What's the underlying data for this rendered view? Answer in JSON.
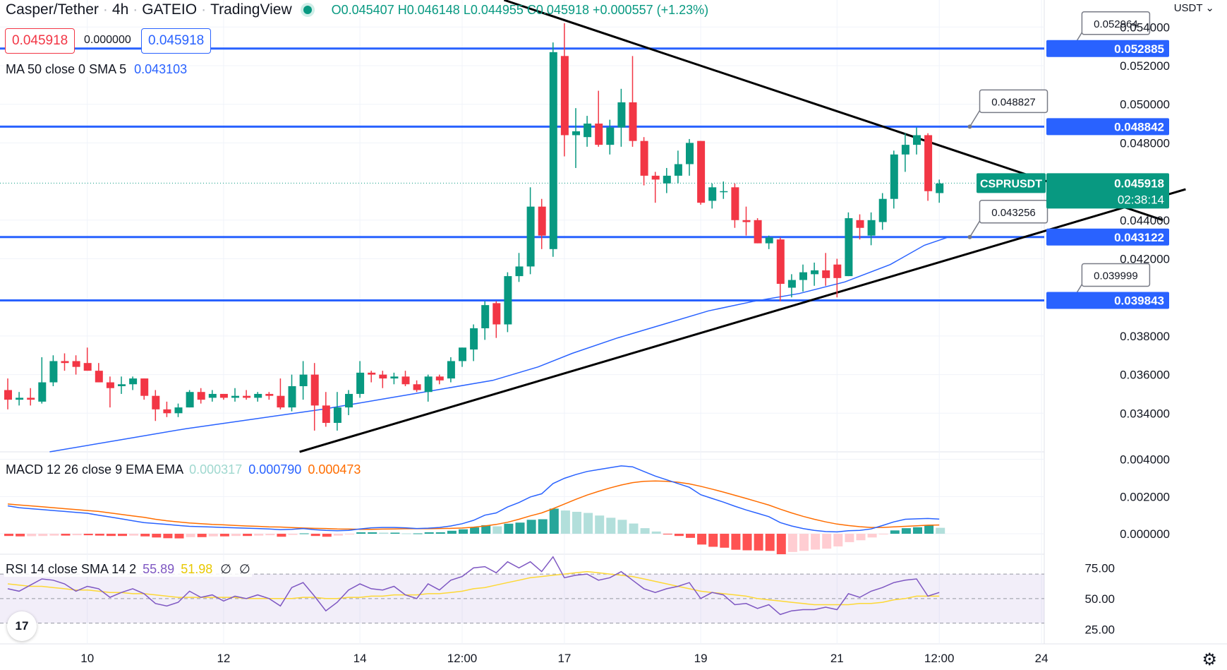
{
  "header": {
    "symbol": "Casper/Tether",
    "interval": "4h",
    "exchange": "GATEIO",
    "platform": "TradingView",
    "open": "O0.045407",
    "high": "H0.046148",
    "low": "L0.044955",
    "close": "C0.045918",
    "change": "+0.000557 (+1.23%)",
    "sell_price": "0.045918",
    "spread": "0.000000",
    "buy_price": "0.045918",
    "currency": "USDT",
    "currency_caret": "⌄"
  },
  "colors": {
    "up": "#089981",
    "down": "#f23645",
    "level": "#2962ff",
    "ma": "#2962ff",
    "macd_signal": "#ff6d00",
    "rsi": "#7e57c2",
    "rsi_ma": "#fdd835"
  },
  "icons": {
    "logo": "tradingview-logo-icon",
    "settings": "gear-icon",
    "live": "live-dot-icon"
  },
  "indicators": {
    "ma": {
      "label": "MA 50 close 0 SMA 5",
      "value": "0.043103"
    },
    "macd": {
      "label": "MACD 12 26 close 9 EMA EMA",
      "hist": "0.000317",
      "macd": "0.000790",
      "signal": "0.000473"
    },
    "rsi": {
      "label": "RSI 14 close SMA 14 2",
      "rsi": "55.89",
      "ma": "51.98",
      "extra1": "∅",
      "extra2": "∅"
    }
  },
  "logo_text": "17",
  "settings_glyph": "⚙",
  "chart_data": {
    "type": "candlestick",
    "x_ticks": [
      {
        "label": "10",
        "i": 7
      },
      {
        "label": "12",
        "i": 19
      },
      {
        "label": "14",
        "i": 31
      },
      {
        "label": "12:00",
        "i": 40
      },
      {
        "label": "17",
        "i": 49
      },
      {
        "label": "19",
        "i": 61
      },
      {
        "label": "21",
        "i": 73
      },
      {
        "label": "12:00",
        "i": 82
      },
      {
        "label": "24",
        "i": 91
      }
    ],
    "price_axis": {
      "min": 0.032,
      "max": 0.0554,
      "ticks": [
        "0.054000",
        "0.052000",
        "0.050000",
        "0.048000",
        "0.044000",
        "0.042000",
        "0.038000",
        "0.036000",
        "0.034000"
      ]
    },
    "candles": [
      {
        "o": 0.0352,
        "h": 0.0358,
        "l": 0.0342,
        "c": 0.0347
      },
      {
        "o": 0.0347,
        "h": 0.0351,
        "l": 0.0344,
        "c": 0.0348
      },
      {
        "o": 0.0348,
        "h": 0.0353,
        "l": 0.0344,
        "c": 0.0347
      },
      {
        "o": 0.0346,
        "h": 0.0369,
        "l": 0.0345,
        "c": 0.0356
      },
      {
        "o": 0.0356,
        "h": 0.037,
        "l": 0.0354,
        "c": 0.0367
      },
      {
        "o": 0.0367,
        "h": 0.0371,
        "l": 0.0362,
        "c": 0.0366
      },
      {
        "o": 0.0367,
        "h": 0.037,
        "l": 0.036,
        "c": 0.0364
      },
      {
        "o": 0.0366,
        "h": 0.0374,
        "l": 0.0362,
        "c": 0.0362
      },
      {
        "o": 0.0362,
        "h": 0.0366,
        "l": 0.0356,
        "c": 0.0356
      },
      {
        "o": 0.0356,
        "h": 0.0359,
        "l": 0.0343,
        "c": 0.0353
      },
      {
        "o": 0.0354,
        "h": 0.0359,
        "l": 0.035,
        "c": 0.0355
      },
      {
        "o": 0.0355,
        "h": 0.0359,
        "l": 0.0352,
        "c": 0.0358
      },
      {
        "o": 0.0358,
        "h": 0.0358,
        "l": 0.0347,
        "c": 0.0349
      },
      {
        "o": 0.0349,
        "h": 0.0352,
        "l": 0.0336,
        "c": 0.0342
      },
      {
        "o": 0.0342,
        "h": 0.0346,
        "l": 0.0338,
        "c": 0.034
      },
      {
        "o": 0.034,
        "h": 0.0345,
        "l": 0.0338,
        "c": 0.0343
      },
      {
        "o": 0.0343,
        "h": 0.0352,
        "l": 0.0343,
        "c": 0.0351
      },
      {
        "o": 0.0351,
        "h": 0.0353,
        "l": 0.0345,
        "c": 0.0347
      },
      {
        "o": 0.0348,
        "h": 0.0352,
        "l": 0.0346,
        "c": 0.035
      },
      {
        "o": 0.035,
        "h": 0.035,
        "l": 0.0347,
        "c": 0.0348
      },
      {
        "o": 0.0348,
        "h": 0.0353,
        "l": 0.0346,
        "c": 0.0349
      },
      {
        "o": 0.0349,
        "h": 0.0352,
        "l": 0.0347,
        "c": 0.0348
      },
      {
        "o": 0.0348,
        "h": 0.0351,
        "l": 0.0346,
        "c": 0.035
      },
      {
        "o": 0.035,
        "h": 0.0351,
        "l": 0.0347,
        "c": 0.0349
      },
      {
        "o": 0.0349,
        "h": 0.0358,
        "l": 0.0342,
        "c": 0.0343
      },
      {
        "o": 0.0343,
        "h": 0.036,
        "l": 0.0341,
        "c": 0.0354
      },
      {
        "o": 0.0354,
        "h": 0.0367,
        "l": 0.0347,
        "c": 0.036
      },
      {
        "o": 0.036,
        "h": 0.0366,
        "l": 0.0331,
        "c": 0.0344
      },
      {
        "o": 0.0344,
        "h": 0.0351,
        "l": 0.0333,
        "c": 0.0335
      },
      {
        "o": 0.0335,
        "h": 0.0351,
        "l": 0.0331,
        "c": 0.0343
      },
      {
        "o": 0.0343,
        "h": 0.0352,
        "l": 0.0339,
        "c": 0.035
      },
      {
        "o": 0.035,
        "h": 0.0367,
        "l": 0.0348,
        "c": 0.0361
      },
      {
        "o": 0.0361,
        "h": 0.0362,
        "l": 0.0356,
        "c": 0.036
      },
      {
        "o": 0.036,
        "h": 0.0362,
        "l": 0.0353,
        "c": 0.0358
      },
      {
        "o": 0.0358,
        "h": 0.0361,
        "l": 0.0355,
        "c": 0.0359
      },
      {
        "o": 0.0359,
        "h": 0.0362,
        "l": 0.0354,
        "c": 0.0355
      },
      {
        "o": 0.0355,
        "h": 0.0357,
        "l": 0.0351,
        "c": 0.0352
      },
      {
        "o": 0.0351,
        "h": 0.036,
        "l": 0.0346,
        "c": 0.0359
      },
      {
        "o": 0.0359,
        "h": 0.036,
        "l": 0.0355,
        "c": 0.0357
      },
      {
        "o": 0.0358,
        "h": 0.0369,
        "l": 0.0356,
        "c": 0.0367
      },
      {
        "o": 0.0367,
        "h": 0.0374,
        "l": 0.0364,
        "c": 0.0374
      },
      {
        "o": 0.0373,
        "h": 0.0386,
        "l": 0.0367,
        "c": 0.0384
      },
      {
        "o": 0.0384,
        "h": 0.0398,
        "l": 0.0378,
        "c": 0.0396
      },
      {
        "o": 0.0397,
        "h": 0.0398,
        "l": 0.0379,
        "c": 0.0386
      },
      {
        "o": 0.0386,
        "h": 0.0413,
        "l": 0.0382,
        "c": 0.0411
      },
      {
        "o": 0.0411,
        "h": 0.0423,
        "l": 0.0408,
        "c": 0.0416
      },
      {
        "o": 0.0416,
        "h": 0.0457,
        "l": 0.0412,
        "c": 0.0447
      },
      {
        "o": 0.0447,
        "h": 0.0451,
        "l": 0.0425,
        "c": 0.0432
      },
      {
        "o": 0.0425,
        "h": 0.0532,
        "l": 0.0421,
        "c": 0.0527
      },
      {
        "o": 0.0525,
        "h": 0.0542,
        "l": 0.0473,
        "c": 0.0484
      },
      {
        "o": 0.0484,
        "h": 0.0498,
        "l": 0.0467,
        "c": 0.0486
      },
      {
        "o": 0.0483,
        "h": 0.0494,
        "l": 0.0478,
        "c": 0.049
      },
      {
        "o": 0.049,
        "h": 0.0507,
        "l": 0.0478,
        "c": 0.0479
      },
      {
        "o": 0.0479,
        "h": 0.0492,
        "l": 0.0474,
        "c": 0.0488
      },
      {
        "o": 0.0488,
        "h": 0.0508,
        "l": 0.0478,
        "c": 0.0501
      },
      {
        "o": 0.0501,
        "h": 0.0525,
        "l": 0.0478,
        "c": 0.0481
      },
      {
        "o": 0.0481,
        "h": 0.0483,
        "l": 0.0458,
        "c": 0.0463
      },
      {
        "o": 0.0463,
        "h": 0.0465,
        "l": 0.0449,
        "c": 0.0461
      },
      {
        "o": 0.0459,
        "h": 0.0467,
        "l": 0.0454,
        "c": 0.0463
      },
      {
        "o": 0.0463,
        "h": 0.0476,
        "l": 0.0459,
        "c": 0.0469
      },
      {
        "o": 0.0469,
        "h": 0.0482,
        "l": 0.0463,
        "c": 0.048
      },
      {
        "o": 0.0481,
        "h": 0.0481,
        "l": 0.0448,
        "c": 0.0449
      },
      {
        "o": 0.045,
        "h": 0.0459,
        "l": 0.0446,
        "c": 0.0457
      },
      {
        "o": 0.0455,
        "h": 0.046,
        "l": 0.0451,
        "c": 0.0455
      },
      {
        "o": 0.0457,
        "h": 0.0459,
        "l": 0.0436,
        "c": 0.044
      },
      {
        "o": 0.044,
        "h": 0.0447,
        "l": 0.0432,
        "c": 0.0439
      },
      {
        "o": 0.044,
        "h": 0.0441,
        "l": 0.0428,
        "c": 0.0428
      },
      {
        "o": 0.0428,
        "h": 0.0432,
        "l": 0.0425,
        "c": 0.0431
      },
      {
        "o": 0.043,
        "h": 0.0431,
        "l": 0.0398,
        "c": 0.0407
      },
      {
        "o": 0.0405,
        "h": 0.0412,
        "l": 0.04,
        "c": 0.0409
      },
      {
        "o": 0.0409,
        "h": 0.0417,
        "l": 0.0403,
        "c": 0.0413
      },
      {
        "o": 0.0412,
        "h": 0.0418,
        "l": 0.0406,
        "c": 0.0414
      },
      {
        "o": 0.0414,
        "h": 0.0423,
        "l": 0.0406,
        "c": 0.041
      },
      {
        "o": 0.0417,
        "h": 0.042,
        "l": 0.04,
        "c": 0.041
      },
      {
        "o": 0.0411,
        "h": 0.0444,
        "l": 0.0411,
        "c": 0.0441
      },
      {
        "o": 0.044,
        "h": 0.0443,
        "l": 0.043,
        "c": 0.0436
      },
      {
        "o": 0.0432,
        "h": 0.0444,
        "l": 0.0427,
        "c": 0.044
      },
      {
        "o": 0.0439,
        "h": 0.0454,
        "l": 0.0435,
        "c": 0.0451
      },
      {
        "o": 0.0451,
        "h": 0.0476,
        "l": 0.0446,
        "c": 0.0474
      },
      {
        "o": 0.0474,
        "h": 0.0485,
        "l": 0.0465,
        "c": 0.0479
      },
      {
        "o": 0.0479,
        "h": 0.0488,
        "l": 0.0474,
        "c": 0.0484
      },
      {
        "o": 0.0484,
        "h": 0.0485,
        "l": 0.045,
        "c": 0.0455
      },
      {
        "o": 0.0454,
        "h": 0.0461,
        "l": 0.0449,
        "c": 0.0459
      }
    ],
    "ma50": [
      [
        4,
        0.032
      ],
      [
        10,
        0.0326
      ],
      [
        16,
        0.0332
      ],
      [
        22,
        0.0337
      ],
      [
        28,
        0.0342
      ],
      [
        34,
        0.0348
      ],
      [
        38,
        0.0352
      ],
      [
        43,
        0.0357
      ],
      [
        47,
        0.0364
      ],
      [
        50,
        0.0371
      ],
      [
        54,
        0.0379
      ],
      [
        58,
        0.0386
      ],
      [
        62,
        0.0393
      ],
      [
        66,
        0.0398
      ],
      [
        70,
        0.0402
      ],
      [
        74,
        0.0408
      ],
      [
        78,
        0.0417
      ],
      [
        81,
        0.0427
      ],
      [
        83,
        0.0431
      ]
    ],
    "levels": [
      {
        "value": 0.052885,
        "label": "0.052885",
        "callout": "0.052964",
        "callout_at": 94
      },
      {
        "value": 0.048842,
        "label": "0.048842",
        "callout": "0.048827",
        "callout_at": 85
      },
      {
        "value": 0.043122,
        "label": "0.043122",
        "callout": "0.043256",
        "callout_at": 85
      },
      {
        "value": 0.039843,
        "label": "0.039843",
        "callout": "0.039999",
        "callout_at": 94
      }
    ],
    "trendlines": [
      {
        "from": [
          44,
          0.0554
        ],
        "to": [
          102,
          0.044
        ]
      },
      {
        "from": [
          26,
          0.032
        ],
        "to": [
          104,
          0.0456
        ]
      }
    ],
    "current_price": {
      "value": 0.045918,
      "label": "0.045918",
      "symbol_tag": "CSPRUSDT",
      "countdown": "02:38:14"
    },
    "macd": {
      "axis": {
        "min": -0.0011,
        "max": 0.0041,
        "ticks": [
          "0.004000",
          "0.002000",
          "0.000000"
        ]
      },
      "hist": [
        -0.00012,
        -0.00014,
        -0.00013,
        -0.00012,
        -0.0001,
        -0.0001,
        -8e-05,
        -8e-05,
        -0.0001,
        -0.00012,
        -0.00012,
        -0.0001,
        -0.00014,
        -0.0002,
        -0.00024,
        -0.00025,
        -0.00018,
        -0.00018,
        -0.00014,
        -0.00014,
        -0.00012,
        -0.00012,
        -0.0001,
        -8e-05,
        -0.00016,
        -6e-05,
        2e-05,
        -0.00012,
        -0.00016,
        -0.0001,
        -4e-05,
        8e-05,
        8e-05,
        6e-05,
        6e-05,
        2e-05,
        2e-05,
        8e-05,
        8e-05,
        0.00016,
        0.00024,
        0.00034,
        0.00046,
        0.0004,
        0.00054,
        0.0006,
        0.00075,
        0.00078,
        0.00135,
        0.00125,
        0.00118,
        0.00112,
        0.00098,
        0.00086,
        0.00075,
        0.00055,
        0.0003,
        0.00012,
        -2e-05,
        -0.00012,
        -0.00022,
        -0.00058,
        -0.0007,
        -0.00075,
        -0.00086,
        -0.00089,
        -0.0009,
        -0.00092,
        -0.0011,
        -0.00098,
        -0.00092,
        -0.00085,
        -0.0008,
        -0.00068,
        -0.00045,
        -0.00035,
        -0.0002,
        -2e-05,
        0.00018,
        0.0003,
        0.00035,
        0.00046,
        0.00032
      ],
      "macd_line": [
        0.0015,
        0.0014,
        0.00135,
        0.0013,
        0.00125,
        0.0012,
        0.00115,
        0.0011,
        0.001,
        0.0009,
        0.0008,
        0.0007,
        0.0006,
        0.00055,
        0.0005,
        0.00045,
        0.0004,
        0.00038,
        0.00036,
        0.00034,
        0.00032,
        0.0003,
        0.00028,
        0.00026,
        0.00022,
        0.00024,
        0.00028,
        0.00022,
        0.00018,
        0.00016,
        0.00018,
        0.00026,
        0.00032,
        0.00034,
        0.00034,
        0.00032,
        0.00028,
        0.0003,
        0.00034,
        0.00042,
        0.00054,
        0.00072,
        0.001,
        0.00112,
        0.00144,
        0.00168,
        0.00198,
        0.00215,
        0.0027,
        0.00298,
        0.00318,
        0.00335,
        0.00345,
        0.00355,
        0.00365,
        0.0036,
        0.00335,
        0.0031,
        0.0029,
        0.0027,
        0.0025,
        0.0021,
        0.0019,
        0.0017,
        0.00148,
        0.00128,
        0.0011,
        0.00092,
        0.0006,
        0.00042,
        0.00028,
        0.00018,
        0.00012,
        0.0001,
        0.00016,
        0.00018,
        0.00026,
        0.00044,
        0.00064,
        0.00078,
        0.0008,
        0.00082,
        0.00079
      ],
      "signal_line": [
        0.0016,
        0.00155,
        0.0015,
        0.00145,
        0.0014,
        0.00135,
        0.0013,
        0.00125,
        0.0012,
        0.00112,
        0.00104,
        0.00096,
        0.00088,
        0.00078,
        0.0007,
        0.00064,
        0.00058,
        0.00054,
        0.0005,
        0.00048,
        0.00045,
        0.00042,
        0.0004,
        0.00037,
        0.00036,
        0.00033,
        0.00031,
        0.00029,
        0.00028,
        0.00026,
        0.00025,
        0.00024,
        0.00024,
        0.00025,
        0.00026,
        0.00027,
        0.00027,
        0.00027,
        0.00028,
        0.00029,
        0.00031,
        0.00035,
        0.00042,
        0.0005,
        0.00062,
        0.00078,
        0.00096,
        0.00112,
        0.00135,
        0.0016,
        0.00185,
        0.00208,
        0.00228,
        0.00246,
        0.00262,
        0.00275,
        0.00282,
        0.00284,
        0.00282,
        0.00277,
        0.00268,
        0.00255,
        0.0024,
        0.00224,
        0.00207,
        0.0019,
        0.00172,
        0.00154,
        0.00132,
        0.00112,
        0.00094,
        0.00078,
        0.00064,
        0.00052,
        0.00044,
        0.00038,
        0.00034,
        0.00034,
        0.00037,
        0.0004,
        0.00043,
        0.00046,
        0.00047
      ]
    },
    "rsi": {
      "axis": {
        "min": 20,
        "max": 85,
        "ticks": [
          "75.00",
          "50.00",
          "25.00"
        ]
      },
      "band_top": 70,
      "band_bottom": 30,
      "mid": 50,
      "rsi_line": [
        58,
        56,
        61,
        66,
        65,
        62,
        56,
        60,
        58,
        51,
        55,
        58,
        54,
        46,
        44,
        47,
        56,
        51,
        53,
        48,
        52,
        50,
        53,
        50,
        44,
        59,
        63,
        52,
        40,
        47,
        57,
        62,
        58,
        57,
        60,
        53,
        50,
        62,
        57,
        65,
        68,
        75,
        76,
        71,
        80,
        75,
        80,
        72,
        84,
        67,
        69,
        70,
        65,
        67,
        72,
        65,
        58,
        55,
        58,
        60,
        63,
        50,
        55,
        53,
        45,
        46,
        42,
        45,
        37,
        40,
        41,
        41,
        43,
        41,
        54,
        51,
        56,
        59,
        63,
        65,
        66,
        52,
        55
      ],
      "ma_line": [
        62,
        61,
        60,
        60,
        59,
        58,
        57,
        57,
        56,
        55,
        55,
        54,
        54,
        53,
        52,
        51,
        51,
        51,
        51,
        51,
        51,
        50,
        50,
        50,
        50,
        50,
        51,
        51,
        50,
        50,
        51,
        51,
        52,
        52,
        53,
        53,
        53,
        54,
        54,
        55,
        56,
        58,
        59,
        61,
        63,
        65,
        67,
        68,
        69,
        70,
        71,
        72,
        71,
        70,
        69,
        68,
        66,
        64,
        62,
        60,
        58,
        56,
        55,
        54,
        53,
        52,
        50,
        49,
        48,
        47,
        46,
        45,
        45,
        45,
        45,
        46,
        46,
        47,
        49,
        50,
        52,
        52,
        52
      ]
    }
  }
}
